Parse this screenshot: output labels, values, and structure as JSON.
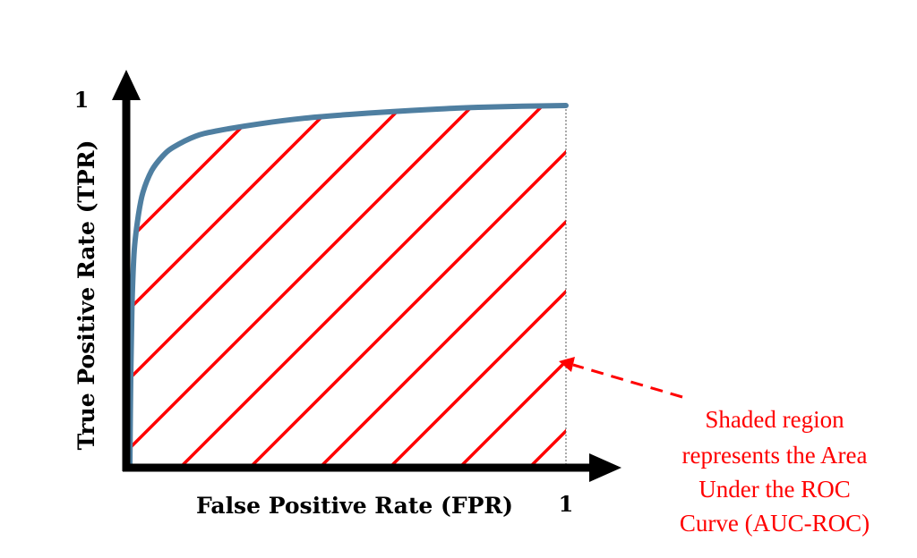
{
  "chart_data": {
    "type": "line",
    "title": "",
    "xlabel": "False Positive Rate (FPR)",
    "ylabel": "True Positive Rate (TPR)",
    "xlim": [
      0,
      1
    ],
    "ylim": [
      0,
      1
    ],
    "x_tick_label": "1",
    "y_tick_label": "1",
    "grid": false,
    "series": [
      {
        "x": [
          0,
          0.002,
          0.005,
          0.01,
          0.02,
          0.03,
          0.05,
          0.075,
          0.1,
          0.15,
          0.2,
          0.3,
          0.4,
          0.5,
          0.6,
          0.7,
          0.8,
          0.9,
          1.0
        ],
        "y": [
          0,
          0.25,
          0.45,
          0.6,
          0.7,
          0.76,
          0.82,
          0.86,
          0.885,
          0.915,
          0.93,
          0.95,
          0.965,
          0.975,
          0.983,
          0.99,
          0.995,
          0.998,
          1.0
        ]
      }
    ],
    "annotation": {
      "lines": [
        "Shaded region",
        "represents the Area",
        "Under the ROC",
        "Curve (AUC-ROC)"
      ],
      "color": "#ff0000"
    }
  },
  "colors": {
    "curve": "#4f7fa1",
    "hatch": "#ff0000",
    "axis": "#000000"
  }
}
